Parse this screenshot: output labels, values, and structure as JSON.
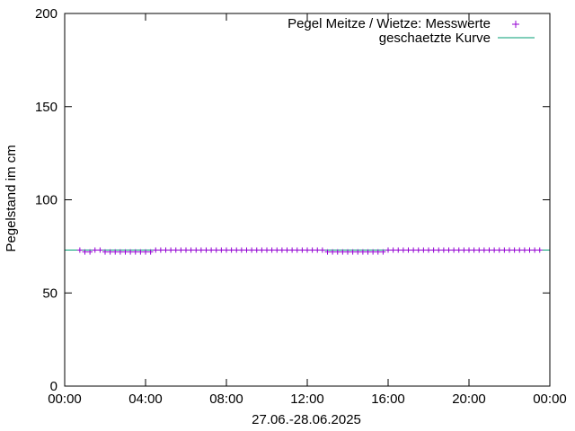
{
  "chart_data": {
    "type": "scatter",
    "title": "",
    "xlabel": "27.06.-28.06.2025",
    "ylabel": "Pegelstand im cm",
    "xlim": [
      0,
      24
    ],
    "ylim": [
      0,
      200
    ],
    "x_ticks": [
      {
        "value": 0,
        "label": "00:00"
      },
      {
        "value": 4,
        "label": "04:00"
      },
      {
        "value": 8,
        "label": "08:00"
      },
      {
        "value": 12,
        "label": "12:00"
      },
      {
        "value": 16,
        "label": "16:00"
      },
      {
        "value": 20,
        "label": "20:00"
      },
      {
        "value": 24,
        "label": "00:00"
      }
    ],
    "y_ticks": [
      {
        "value": 0,
        "label": "0"
      },
      {
        "value": 50,
        "label": "50"
      },
      {
        "value": 100,
        "label": "100"
      },
      {
        "value": 150,
        "label": "150"
      },
      {
        "value": 200,
        "label": "200"
      }
    ],
    "legend_position": "top-right",
    "colors": {
      "measured": "#9400d3",
      "estimated": "#009e73",
      "axis": "#000000"
    },
    "series": [
      {
        "name": "Pegel Meitze / Wietze: Messwerte",
        "kind": "points",
        "marker": "plus",
        "x": [
          0.75,
          1.0,
          1.25,
          1.5,
          1.75,
          2.0,
          2.25,
          2.5,
          2.75,
          3.0,
          3.25,
          3.5,
          3.75,
          4.0,
          4.25,
          4.5,
          4.75,
          5.0,
          5.25,
          5.5,
          5.75,
          6.0,
          6.25,
          6.5,
          6.75,
          7.0,
          7.25,
          7.5,
          7.75,
          8.0,
          8.25,
          8.5,
          8.75,
          9.0,
          9.25,
          9.5,
          9.75,
          10.0,
          10.25,
          10.5,
          10.75,
          11.0,
          11.25,
          11.5,
          11.75,
          12.0,
          12.25,
          12.5,
          12.75,
          13.0,
          13.25,
          13.5,
          13.75,
          14.0,
          14.25,
          14.5,
          14.75,
          15.0,
          15.25,
          15.5,
          15.75,
          16.0,
          16.25,
          16.5,
          16.75,
          17.0,
          17.25,
          17.5,
          17.75,
          18.0,
          18.25,
          18.5,
          18.75,
          19.0,
          19.25,
          19.5,
          19.75,
          20.0,
          20.25,
          20.5,
          20.75,
          21.0,
          21.25,
          21.5,
          21.75,
          22.0,
          22.25,
          22.5,
          22.75,
          23.0,
          23.25,
          23.5
        ],
        "y": [
          73,
          72,
          72,
          73,
          73,
          72,
          72,
          72,
          72,
          72,
          72,
          72,
          72,
          72,
          72,
          73,
          73,
          73,
          73,
          73,
          73,
          73,
          73,
          73,
          73,
          73,
          73,
          73,
          73,
          73,
          73,
          73,
          73,
          73,
          73,
          73,
          73,
          73,
          73,
          73,
          73,
          73,
          73,
          73,
          73,
          73,
          73,
          73,
          73,
          72,
          72,
          72,
          72,
          72,
          72,
          72,
          72,
          72,
          72,
          72,
          72,
          73,
          73,
          73,
          73,
          73,
          73,
          73,
          73,
          73,
          73,
          73,
          73,
          73,
          73,
          73,
          73,
          73,
          73,
          73,
          73,
          73,
          73,
          73,
          73,
          73,
          73,
          73,
          73,
          73,
          73,
          73
        ]
      },
      {
        "name": "geschaetzte Kurve",
        "kind": "line",
        "x": [
          0,
          24
        ],
        "y": [
          73,
          73
        ]
      }
    ]
  }
}
